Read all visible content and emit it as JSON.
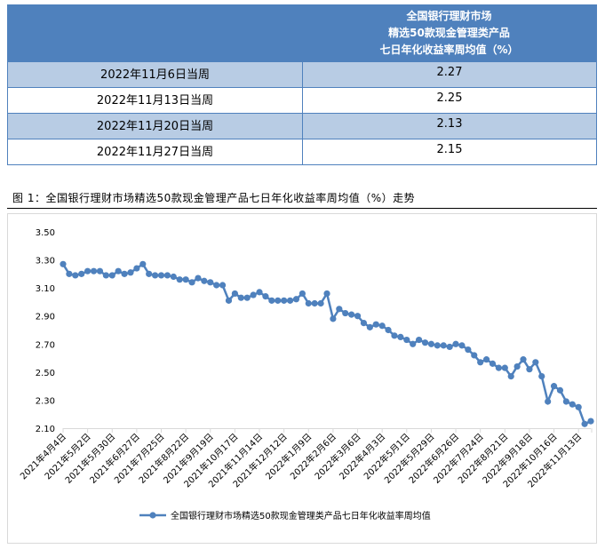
{
  "table": {
    "header": [
      "全国银行理财市场",
      "精选50款现金管理类产品",
      "七日年化收益率周均值（%）"
    ],
    "rows": [
      {
        "week": "2022年11月6日当周",
        "value": "2.27"
      },
      {
        "week": "2022年11月13日当周",
        "value": "2.25"
      },
      {
        "week": "2022年11月20日当周",
        "value": "2.13"
      },
      {
        "week": "2022年11月27日当周",
        "value": "2.15"
      }
    ],
    "header_color": "#4f81bd",
    "alt_row_color": "#b8cce4"
  },
  "caption": "图 1：全国银行理财市场精选50款现金管理产品七日年化收益率周均值（%）走势",
  "chart_data": {
    "type": "line",
    "title": "",
    "xlabel": "",
    "ylabel": "",
    "ylim": [
      2.1,
      3.5
    ],
    "yticks": [
      "2.10",
      "2.30",
      "2.50",
      "2.70",
      "2.90",
      "3.10",
      "3.30",
      "3.50"
    ],
    "grid": false,
    "legend_position": "bottom",
    "series_color": "#4f81bd",
    "x": [
      "2021年4月4日",
      "2021年4月11日",
      "2021年4月18日",
      "2021年4月25日",
      "2021年5月2日",
      "2021年5月9日",
      "2021年5月16日",
      "2021年5月23日",
      "2021年5月30日",
      "2021年6月6日",
      "2021年6月13日",
      "2021年6月20日",
      "2021年6月27日",
      "2021年7月4日",
      "2021年7月11日",
      "2021年7月18日",
      "2021年7月25日",
      "2021年8月1日",
      "2021年8月8日",
      "2021年8月15日",
      "2021年8月22日",
      "2021年8月29日",
      "2021年9月5日",
      "2021年9月12日",
      "2021年9月19日",
      "2021年9月26日",
      "2021年10月3日",
      "2021年10月10日",
      "2021年10月17日",
      "2021年10月24日",
      "2021年10月31日",
      "2021年11月7日",
      "2021年11月14日",
      "2021年11月21日",
      "2021年11月28日",
      "2021年12月5日",
      "2021年12月12日",
      "2021年12月19日",
      "2021年12月26日",
      "2022年1月2日",
      "2022年1月9日",
      "2022年1月16日",
      "2022年1月23日",
      "2022年1月30日",
      "2022年2月6日",
      "2022年2月13日",
      "2022年2月20日",
      "2022年2月27日",
      "2022年3月6日",
      "2022年3月13日",
      "2022年3月20日",
      "2022年3月27日",
      "2022年4月3日",
      "2022年4月10日",
      "2022年4月17日",
      "2022年4月24日",
      "2022年5月1日",
      "2022年5月8日",
      "2022年5月15日",
      "2022年5月22日",
      "2022年5月29日",
      "2022年6月5日",
      "2022年6月12日",
      "2022年6月19日",
      "2022年6月26日",
      "2022年7月3日",
      "2022年7月10日",
      "2022年7月17日",
      "2022年7月24日",
      "2022年7月31日",
      "2022年8月7日",
      "2022年8月14日",
      "2022年8月21日",
      "2022年8月28日",
      "2022年9月4日",
      "2022年9月11日",
      "2022年9月18日",
      "2022年9月25日",
      "2022年10月2日",
      "2022年10月9日",
      "2022年10月16日",
      "2022年10月23日",
      "2022年10月30日",
      "2022年11月6日",
      "2022年11月13日",
      "2022年11月20日",
      "2022年11月27日"
    ],
    "series": [
      {
        "name": "全国银行理财市场精选50款现金管理类产品七日年化收益率周均值",
        "values": [
          3.27,
          3.2,
          3.19,
          3.2,
          3.22,
          3.22,
          3.22,
          3.19,
          3.19,
          3.22,
          3.2,
          3.21,
          3.24,
          3.27,
          3.2,
          3.19,
          3.19,
          3.19,
          3.18,
          3.16,
          3.16,
          3.14,
          3.17,
          3.15,
          3.14,
          3.12,
          3.12,
          3.01,
          3.06,
          3.03,
          3.03,
          3.05,
          3.07,
          3.04,
          3.01,
          3.01,
          3.01,
          3.01,
          3.02,
          3.06,
          2.99,
          2.99,
          2.99,
          3.06,
          2.88,
          2.95,
          2.92,
          2.91,
          2.9,
          2.85,
          2.82,
          2.84,
          2.83,
          2.8,
          2.76,
          2.75,
          2.73,
          2.7,
          2.73,
          2.71,
          2.7,
          2.69,
          2.69,
          2.68,
          2.7,
          2.69,
          2.66,
          2.62,
          2.57,
          2.59,
          2.56,
          2.53,
          2.53,
          2.47,
          2.54,
          2.59,
          2.52,
          2.57,
          2.47,
          2.29,
          2.4,
          2.37,
          2.29,
          2.27,
          2.25,
          2.13,
          2.15
        ]
      }
    ],
    "xtick_labels": [
      "2021年4月4日",
      "2021年5月2日",
      "2021年5月30日",
      "2021年6月27日",
      "2021年7月25日",
      "2021年8月22日",
      "2021年9月19日",
      "2021年10月17日",
      "2021年11月14日",
      "2021年12月12日",
      "2022年1月9日",
      "2022年2月6日",
      "2022年3月6日",
      "2022年4月3日",
      "2022年5月1日",
      "2022年5月29日",
      "2022年6月26日",
      "2022年7月24日",
      "2022年8月21日",
      "2022年9月18日",
      "2022年10月16日",
      "2022年11月13日"
    ]
  }
}
